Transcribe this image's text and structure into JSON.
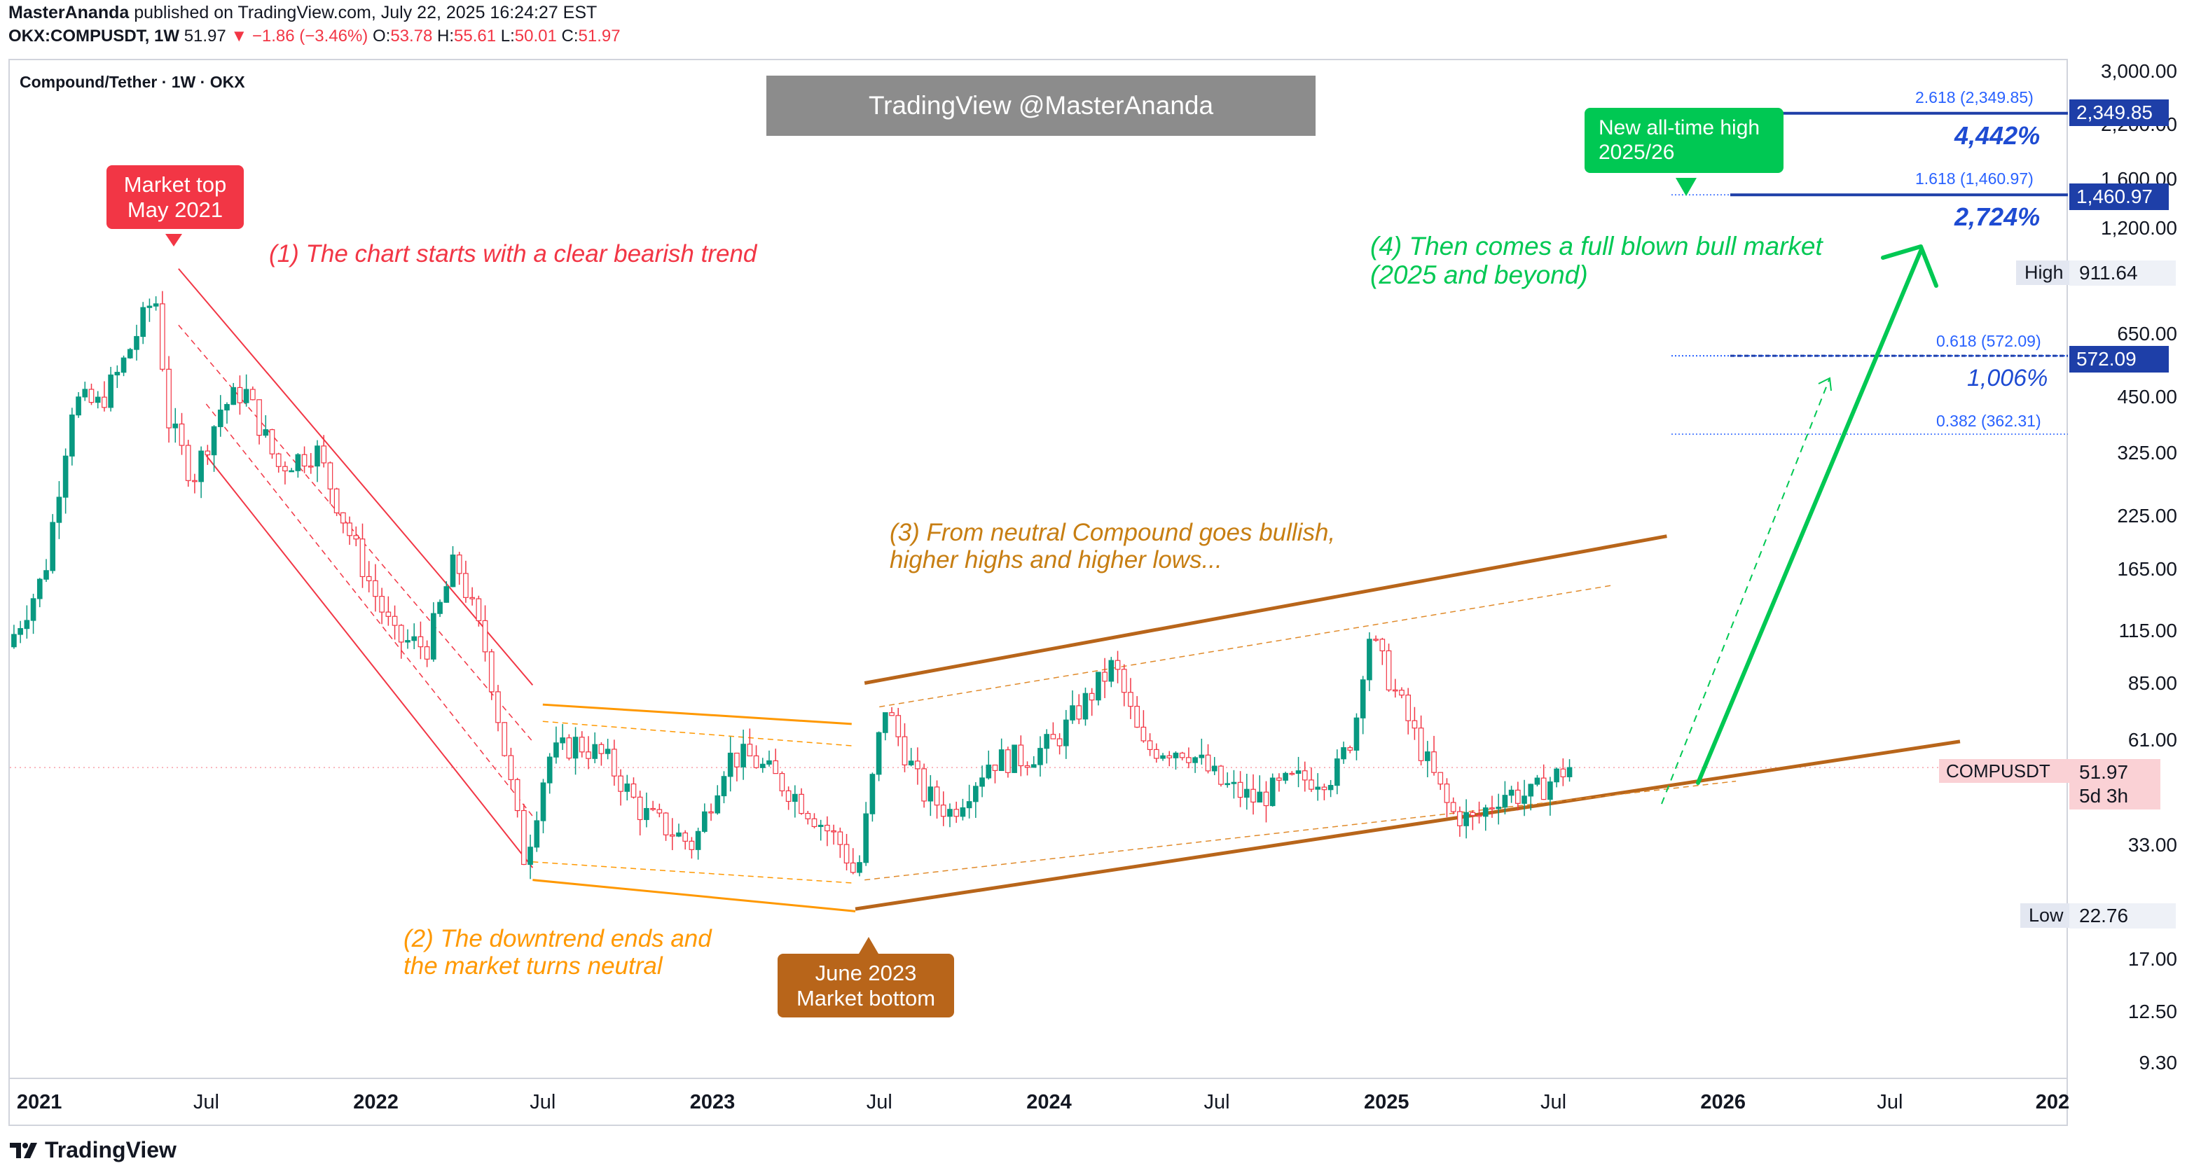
{
  "header": {
    "author": "MasterAnanda",
    "published_text": "published on TradingView.com, July 22, 2025 16:24:27 EST",
    "symbol_line": {
      "symbol": "OKX:COMPUSDT, 1W",
      "last": "51.97",
      "change": "▼ −1.86 (−3.46%)",
      "o_label": "O:",
      "o": "53.78",
      "h_label": "H:",
      "h": "55.61",
      "l_label": "L:",
      "l": "50.01",
      "c_label": "C:",
      "c": "51.97"
    }
  },
  "chart_title": "Compound/Tether · 1W · OKX",
  "watermark": "TradingView @MasterAnanda",
  "footer_logo": "TradingView",
  "colors": {
    "up": "#089981",
    "down": "#f23645",
    "bear_channel": "#f23645",
    "neutral": "#ff9800",
    "bull_channel": "#b8651a",
    "bull_arrow": "#00c853",
    "fib": "#2962ff",
    "fib_tag": "#1e3fa8"
  },
  "annotations": {
    "market_top": [
      "Market top",
      "May 2021"
    ],
    "step1": "(1) The chart starts with a clear bearish trend",
    "step2": [
      "(2) The downtrend ends and",
      "the market turns neutral"
    ],
    "market_bottom": [
      "June 2023",
      "Market bottom"
    ],
    "step3": [
      "(3) From neutral Compound goes bullish,",
      "higher highs and higher lows..."
    ],
    "step4": [
      "(4) Then comes a full blown bull market",
      "(2025 and beyond)"
    ],
    "new_ath": [
      "New all-time high",
      "2025/26"
    ],
    "pct_4442": "4,442%",
    "pct_2724": "2,724%",
    "pct_1006": "1,006%"
  },
  "fib_levels": [
    {
      "label": "2.618 (2,349.85)",
      "value": 2349.85,
      "tag": "2,349.85",
      "style": "solid"
    },
    {
      "label": "1.618 (1,460.97)",
      "value": 1460.97,
      "tag": "1,460.97",
      "style": "solid"
    },
    {
      "label": "0.618 (572.09)",
      "value": 572.09,
      "tag": "572.09",
      "style": "dotted"
    },
    {
      "label": "0.382 (362.31)",
      "value": 362.31,
      "tag": "",
      "style": "dotted"
    }
  ],
  "price_axis": {
    "labels": [
      "3,000.00",
      "2,200.00",
      "1,600.00",
      "1,200.00",
      "650.00",
      "450.00",
      "325.00",
      "225.00",
      "165.00",
      "115.00",
      "85.00",
      "61.00",
      "33.00",
      "17.00",
      "12.50",
      "9.30"
    ],
    "high_label": "High",
    "high_value": "911.64",
    "low_label": "Low",
    "low_value": "22.76",
    "current_symbol": "COMPUSDT",
    "current_price": "51.97",
    "countdown": "5d 3h"
  },
  "time_axis": {
    "labels": [
      {
        "text": "2021",
        "year": true
      },
      {
        "text": "Jul",
        "year": false
      },
      {
        "text": "2022",
        "year": true
      },
      {
        "text": "Jul",
        "year": false
      },
      {
        "text": "2023",
        "year": true
      },
      {
        "text": "Jul",
        "year": false
      },
      {
        "text": "2024",
        "year": true
      },
      {
        "text": "Jul",
        "year": false
      },
      {
        "text": "2025",
        "year": true
      },
      {
        "text": "Jul",
        "year": false
      },
      {
        "text": "2026",
        "year": true
      },
      {
        "text": "Jul",
        "year": false
      },
      {
        "text": "202",
        "year": true
      }
    ]
  },
  "chart_data": {
    "type": "candlestick",
    "scale": "log",
    "ylim": [
      8.5,
      3200
    ],
    "x_range": [
      "2020-11-30",
      "2027-01-10"
    ],
    "interval": "1W",
    "series": [
      {
        "name": "COMPUSDT",
        "anchors": [
          [
            "2020-12-01",
            105
          ],
          [
            "2021-01-10",
            160
          ],
          [
            "2021-02-10",
            440
          ],
          [
            "2021-03-10",
            430
          ],
          [
            "2021-04-01",
            520
          ],
          [
            "2021-05-10",
            820
          ],
          [
            "2021-05-25",
            390
          ],
          [
            "2021-06-20",
            280
          ],
          [
            "2021-07-20",
            420
          ],
          [
            "2021-08-15",
            470
          ],
          [
            "2021-09-20",
            300
          ],
          [
            "2021-11-01",
            330
          ],
          [
            "2021-12-20",
            170
          ],
          [
            "2022-01-25",
            110
          ],
          [
            "2022-03-01",
            105
          ],
          [
            "2022-04-01",
            175
          ],
          [
            "2022-05-05",
            100
          ],
          [
            "2022-06-15",
            30
          ],
          [
            "2022-07-10",
            55
          ],
          [
            "2022-08-10",
            60
          ],
          [
            "2022-09-10",
            55
          ],
          [
            "2022-10-20",
            40
          ],
          [
            "2022-12-15",
            33
          ],
          [
            "2023-01-20",
            55
          ],
          [
            "2023-02-15",
            55
          ],
          [
            "2023-04-01",
            45
          ],
          [
            "2023-05-25",
            33
          ],
          [
            "2023-06-10",
            27
          ],
          [
            "2023-06-25",
            45
          ],
          [
            "2023-07-10",
            75
          ],
          [
            "2023-08-20",
            45
          ],
          [
            "2023-09-20",
            40
          ],
          [
            "2023-11-01",
            54
          ],
          [
            "2023-12-10",
            55
          ],
          [
            "2024-01-10",
            60
          ],
          [
            "2024-03-15",
            95
          ],
          [
            "2024-04-15",
            58
          ],
          [
            "2024-06-01",
            58
          ],
          [
            "2024-07-10",
            47
          ],
          [
            "2024-08-15",
            43
          ],
          [
            "2024-09-25",
            48
          ],
          [
            "2024-11-10",
            50
          ],
          [
            "2024-12-01",
            65
          ],
          [
            "2024-12-15",
            115
          ],
          [
            "2025-01-20",
            75
          ],
          [
            "2025-02-15",
            55
          ],
          [
            "2025-03-15",
            40
          ],
          [
            "2025-04-10",
            38
          ],
          [
            "2025-05-10",
            45
          ],
          [
            "2025-06-10",
            44
          ],
          [
            "2025-07-20",
            52
          ]
        ]
      }
    ],
    "last_price": 51.97,
    "high": 911.64,
    "low": 22.76,
    "trendlines": {
      "bear_channel_upper": [
        [
          "2021-06-01",
          950
        ],
        [
          "2022-06-20",
          84
        ]
      ],
      "bear_channel_lower": [
        [
          "2021-07-01",
          320
        ],
        [
          "2022-06-20",
          29
        ]
      ],
      "neutral_upper": [
        [
          "2022-07-01",
          75
        ],
        [
          "2023-06-01",
          67
        ]
      ],
      "neutral_lower": [
        [
          "2022-06-20",
          27
        ],
        [
          "2023-06-05",
          22.5
        ]
      ],
      "bull_upper": [
        [
          "2023-06-15",
          85
        ],
        [
          "2025-11-01",
          200
        ]
      ],
      "bull_lower": [
        [
          "2023-06-05",
          22.8
        ],
        [
          "2026-09-15",
          60.5
        ]
      ]
    }
  }
}
